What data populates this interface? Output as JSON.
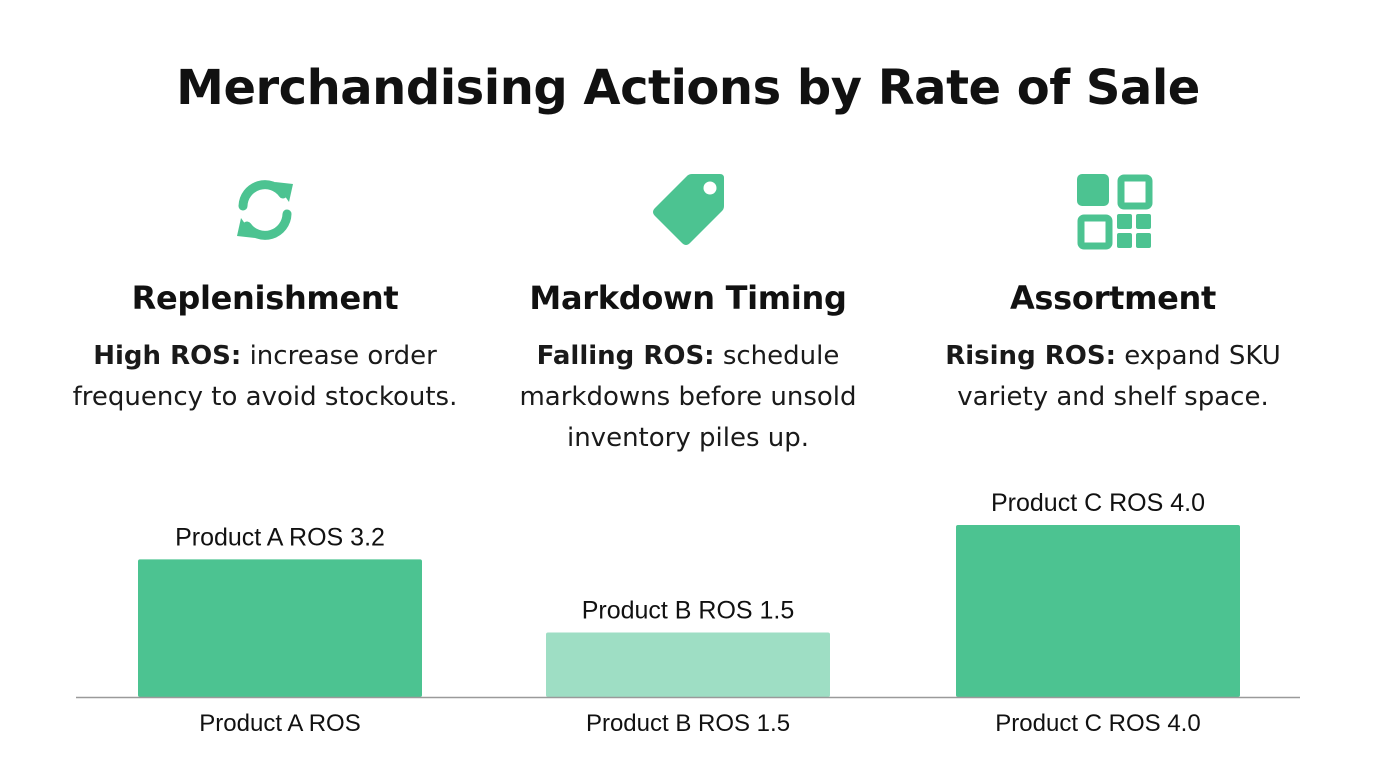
{
  "title": "Merchandising Actions by Rate of Sale",
  "colors": {
    "accent": "#4cc391",
    "accent_light": "#9edec4",
    "baseline": "#9a9a9a",
    "text": "#111111"
  },
  "columns": [
    {
      "icon": "refresh-cycle-icon",
      "heading": "Replenishment",
      "lead": "High ROS:",
      "text": " increase order frequency to avoid stockouts."
    },
    {
      "icon": "price-tag-icon",
      "heading": "Markdown Timing",
      "lead": "Falling ROS:",
      "text": " schedule markdowns before unsold inventory piles up."
    },
    {
      "icon": "grid-squares-icon",
      "heading": "Assortment",
      "lead": "Rising ROS:",
      "text": " expand SKU variety and shelf space."
    }
  ],
  "chart_data": {
    "type": "bar",
    "categories": [
      "Product A ROS",
      "Product B ROS 1.5",
      "Product C ROS 4.0"
    ],
    "values": [
      3.2,
      1.5,
      4.0
    ],
    "data_labels": [
      "Product A ROS 3.2",
      "Product B ROS 1.5",
      "Product C ROS 4.0"
    ],
    "bar_colors": [
      "#4cc391",
      "#9edec4",
      "#4cc391"
    ],
    "title": "",
    "xlabel": "",
    "ylabel": "",
    "ylim": [
      0,
      4.0
    ],
    "grid": false,
    "legend": "none"
  }
}
